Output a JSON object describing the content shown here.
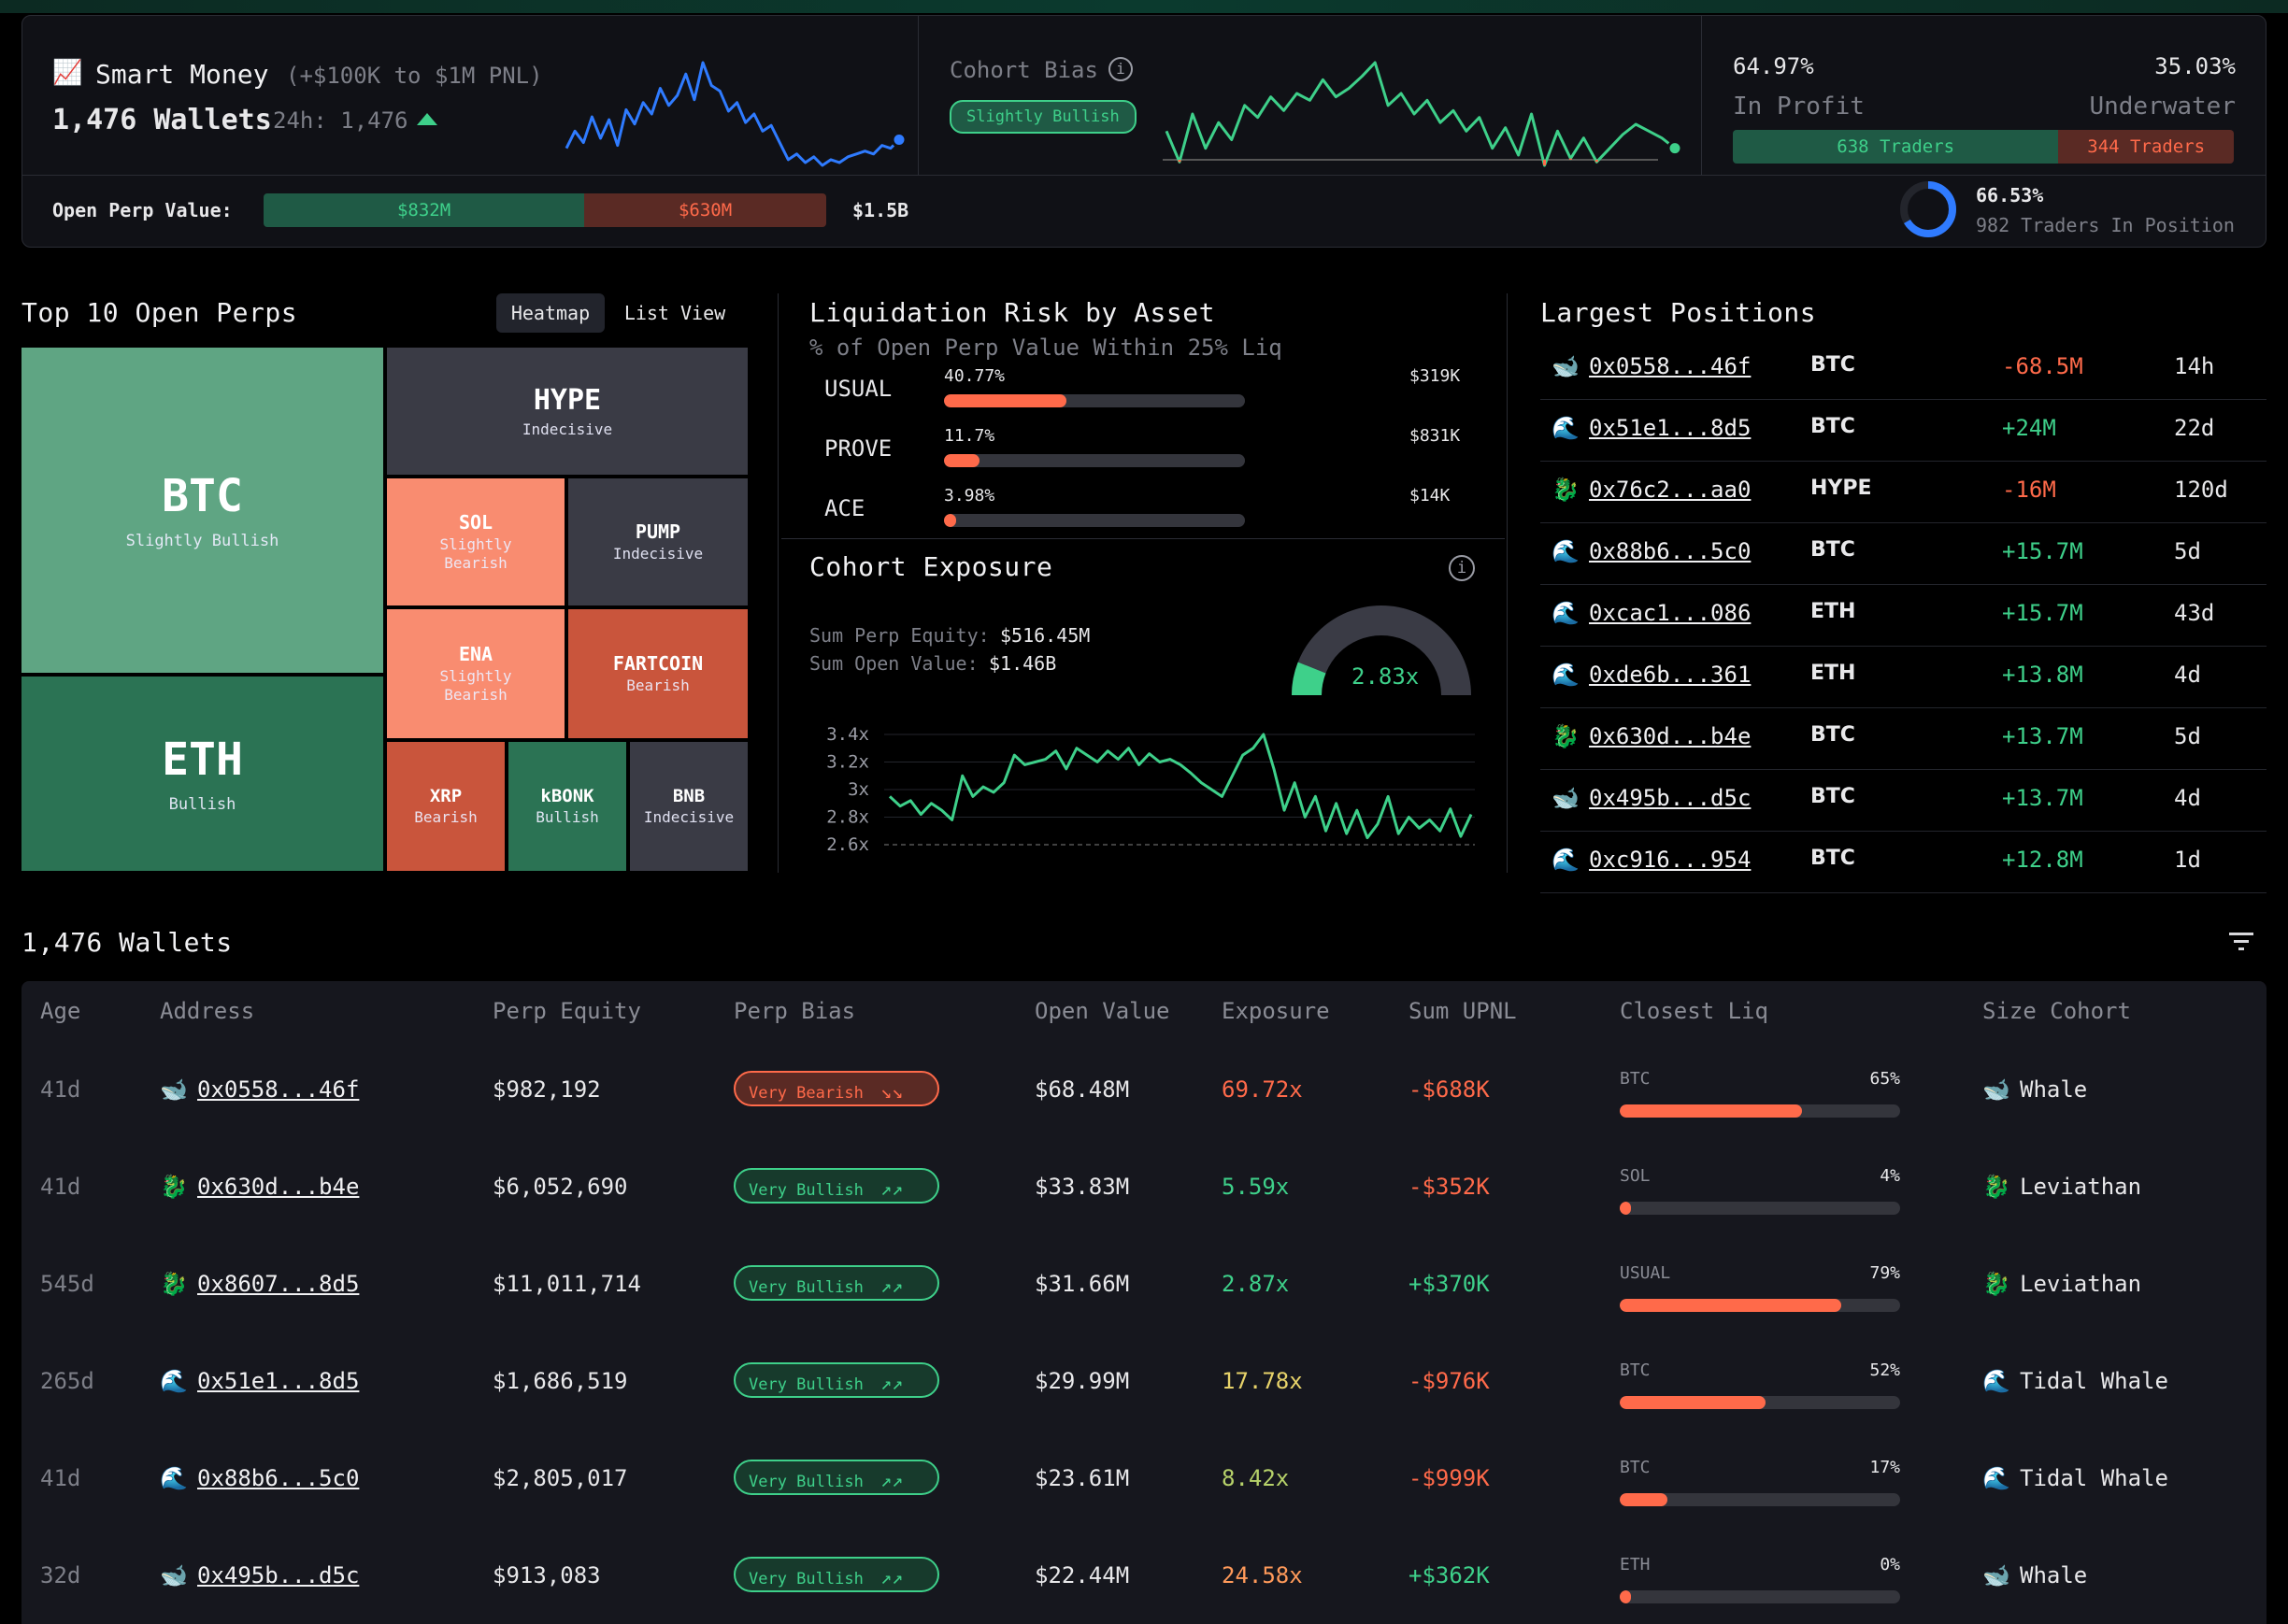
{
  "header": {
    "smart_money": {
      "icon": "chart-increasing-emoji",
      "title": "Smart Money",
      "range": "(+$100K to $1M PNL)",
      "wallets": "1,476 Wallets",
      "h24_label": "24h: 1,476",
      "sparkline": [
        18,
        30,
        22,
        40,
        25,
        38,
        20,
        45,
        35,
        50,
        42,
        60,
        48,
        55,
        70,
        52,
        78,
        62,
        58,
        44,
        50,
        36,
        42,
        30,
        34,
        22,
        10,
        14,
        8,
        12,
        6,
        10,
        8,
        12,
        14,
        16,
        14,
        20,
        18,
        24
      ]
    },
    "cohort_bias": {
      "title": "Cohort Bias",
      "badge": "Slightly Bullish",
      "sparkline": [
        40,
        22,
        50,
        30,
        45,
        35,
        55,
        48,
        60,
        52,
        62,
        58,
        70,
        60,
        65,
        72,
        80,
        55,
        62,
        50,
        58,
        45,
        52,
        40,
        48,
        30,
        42,
        26,
        50,
        20,
        40,
        24,
        36,
        22,
        30,
        38,
        44,
        40,
        36,
        30
      ]
    },
    "profit": {
      "in_profit_pct": "64.97%",
      "in_profit_label": "In Profit",
      "underwater_pct": "35.03%",
      "underwater_label": "Underwater",
      "traders_profit": "638 Traders",
      "traders_loss": "344 Traders",
      "profit_fraction": 0.65
    },
    "open_perp": {
      "label": "Open Perp Value:",
      "long": "$832M",
      "short": "$630M",
      "total": "$1.5B",
      "long_fraction": 0.57
    },
    "in_position": {
      "pct": "66.53%",
      "label": "982 Traders In Position",
      "fraction": 0.6653
    }
  },
  "top_perps": {
    "title": "Top 10 Open Perps",
    "tab_heatmap": "Heatmap",
    "tab_list": "List View",
    "tiles": [
      {
        "name": "BTC",
        "bias": "Slightly Bullish"
      },
      {
        "name": "ETH",
        "bias": "Bullish"
      },
      {
        "name": "HYPE",
        "bias": "Indecisive"
      },
      {
        "name": "SOL",
        "bias": "Slightly Bearish"
      },
      {
        "name": "PUMP",
        "bias": "Indecisive"
      },
      {
        "name": "ENA",
        "bias": "Slightly Bearish"
      },
      {
        "name": "FARTCOIN",
        "bias": "Bearish"
      },
      {
        "name": "XRP",
        "bias": "Bearish"
      },
      {
        "name": "kBONK",
        "bias": "Bullish"
      },
      {
        "name": "BNB",
        "bias": "Indecisive"
      }
    ]
  },
  "liq_risk": {
    "title": "Liquidation Risk by Asset",
    "subtitle": "% of Open Perp Value Within 25% Liq",
    "rows": [
      {
        "asset": "USUAL",
        "pct": "40.77%",
        "value": "$319K",
        "fraction": 0.4077
      },
      {
        "asset": "PROVE",
        "pct": "11.7%",
        "value": "$831K",
        "fraction": 0.117
      },
      {
        "asset": "ACE",
        "pct": "3.98%",
        "value": "$14K",
        "fraction": 0.0398
      }
    ]
  },
  "cohort_exposure": {
    "title": "Cohort Exposure",
    "equity_label": "Sum Perp Equity:",
    "equity": "$516.45M",
    "open_label": "Sum Open Value:",
    "open_value": "$1.46B",
    "gauge_value": "2.83x",
    "gauge_fraction": 0.12,
    "y_ticks": [
      "3.4x",
      "3.2x",
      "3x",
      "2.8x",
      "2.6x"
    ],
    "series": [
      2.95,
      2.88,
      2.92,
      2.82,
      2.9,
      2.85,
      2.78,
      3.1,
      2.95,
      3.02,
      2.98,
      3.05,
      3.25,
      3.18,
      3.2,
      3.22,
      3.28,
      3.15,
      3.3,
      3.25,
      3.2,
      3.28,
      3.22,
      3.3,
      3.18,
      3.26,
      3.2,
      3.22,
      3.18,
      3.12,
      3.05,
      3.0,
      2.95,
      3.1,
      3.25,
      3.3,
      3.4,
      3.15,
      2.85,
      3.05,
      2.8,
      2.95,
      2.7,
      2.9,
      2.68,
      2.85,
      2.65,
      2.75,
      2.95,
      2.68,
      2.8,
      2.72,
      2.78,
      2.7,
      2.86,
      2.66,
      2.82
    ]
  },
  "largest_positions": {
    "title": "Largest Positions",
    "rows": [
      {
        "icon": "whale",
        "addr": "0x0558...46f",
        "asset": "BTC",
        "pnl": "-68.5M",
        "age": "14h",
        "neg": true
      },
      {
        "icon": "wave",
        "addr": "0x51e1...8d5",
        "asset": "BTC",
        "pnl": "+24M",
        "age": "22d",
        "neg": false
      },
      {
        "icon": "leviathan",
        "addr": "0x76c2...aa0",
        "asset": "HYPE",
        "pnl": "-16M",
        "age": "120d",
        "neg": true
      },
      {
        "icon": "wave",
        "addr": "0x88b6...5c0",
        "asset": "BTC",
        "pnl": "+15.7M",
        "age": "5d",
        "neg": false
      },
      {
        "icon": "wave",
        "addr": "0xcac1...086",
        "asset": "ETH",
        "pnl": "+15.7M",
        "age": "43d",
        "neg": false
      },
      {
        "icon": "wave",
        "addr": "0xde6b...361",
        "asset": "ETH",
        "pnl": "+13.8M",
        "age": "4d",
        "neg": false
      },
      {
        "icon": "leviathan",
        "addr": "0x630d...b4e",
        "asset": "BTC",
        "pnl": "+13.7M",
        "age": "5d",
        "neg": false
      },
      {
        "icon": "whale",
        "addr": "0x495b...d5c",
        "asset": "BTC",
        "pnl": "+13.7M",
        "age": "4d",
        "neg": false
      },
      {
        "icon": "wave",
        "addr": "0xc916...954",
        "asset": "BTC",
        "pnl": "+12.8M",
        "age": "1d",
        "neg": false
      }
    ]
  },
  "wallets": {
    "title": "1,476 Wallets",
    "columns": [
      "Age",
      "Address",
      "Perp Equity",
      "Perp Bias",
      "Open Value",
      "Exposure",
      "Sum UPNL",
      "Closest Liq",
      "Size Cohort"
    ],
    "rows": [
      {
        "age": "41d",
        "icon": "whale",
        "addr": "0x0558...46f",
        "equity": "$982,192",
        "bias": "Very Bearish",
        "bearish": true,
        "open": "$68.48M",
        "exposure": "69.72x",
        "exp_color": "#ff6a4a",
        "upnl": "-$688K",
        "upnl_neg": true,
        "liq_asset": "BTC",
        "liq_pct": "65%",
        "liq_fraction": 0.65,
        "cohort_icon": "whale",
        "cohort": "Whale"
      },
      {
        "age": "41d",
        "icon": "leviathan",
        "addr": "0x630d...b4e",
        "equity": "$6,052,690",
        "bias": "Very Bullish",
        "bearish": false,
        "open": "$33.83M",
        "exposure": "5.59x",
        "exp_color": "#3ed08a",
        "upnl": "-$352K",
        "upnl_neg": true,
        "liq_asset": "SOL",
        "liq_pct": "4%",
        "liq_fraction": 0.04,
        "cohort_icon": "leviathan",
        "cohort": "Leviathan"
      },
      {
        "age": "545d",
        "icon": "leviathan",
        "addr": "0x8607...8d5",
        "equity": "$11,011,714",
        "bias": "Very Bullish",
        "bearish": false,
        "open": "$31.66M",
        "exposure": "2.87x",
        "exp_color": "#3ed08a",
        "upnl": "+$370K",
        "upnl_neg": false,
        "liq_asset": "USUAL",
        "liq_pct": "79%",
        "liq_fraction": 0.79,
        "cohort_icon": "leviathan",
        "cohort": "Leviathan"
      },
      {
        "age": "265d",
        "icon": "wave",
        "addr": "0x51e1...8d5",
        "equity": "$1,686,519",
        "bias": "Very Bullish",
        "bearish": false,
        "open": "$29.99M",
        "exposure": "17.78x",
        "exp_color": "#e8d36a",
        "upnl": "-$976K",
        "upnl_neg": true,
        "liq_asset": "BTC",
        "liq_pct": "52%",
        "liq_fraction": 0.52,
        "cohort_icon": "wave",
        "cohort": "Tidal Whale"
      },
      {
        "age": "41d",
        "icon": "wave",
        "addr": "0x88b6...5c0",
        "equity": "$2,805,017",
        "bias": "Very Bullish",
        "bearish": false,
        "open": "$23.61M",
        "exposure": "8.42x",
        "exp_color": "#b7d26a",
        "upnl": "-$999K",
        "upnl_neg": true,
        "liq_asset": "BTC",
        "liq_pct": "17%",
        "liq_fraction": 0.17,
        "cohort_icon": "wave",
        "cohort": "Tidal Whale"
      },
      {
        "age": "32d",
        "icon": "whale",
        "addr": "0x495b...d5c",
        "equity": "$913,083",
        "bias": "Very Bullish",
        "bearish": false,
        "open": "$22.44M",
        "exposure": "24.58x",
        "exp_color": "#ff9a5a",
        "upnl": "+$362K",
        "upnl_neg": false,
        "liq_asset": "ETH",
        "liq_pct": "0%",
        "liq_fraction": 0.0,
        "cohort_icon": "whale",
        "cohort": "Whale"
      }
    ]
  },
  "colors": {
    "green": "#3ed08a",
    "red": "#ff6a4a",
    "blue": "#2f7bff",
    "tile_btc": "#5fa583",
    "tile_eth": "#2b7354",
    "tile_indecisive": "#3a3b45",
    "tile_slightly_bearish": "#f98c70",
    "tile_bearish": "#c9553c",
    "tile_bullish": "#2b7354"
  }
}
